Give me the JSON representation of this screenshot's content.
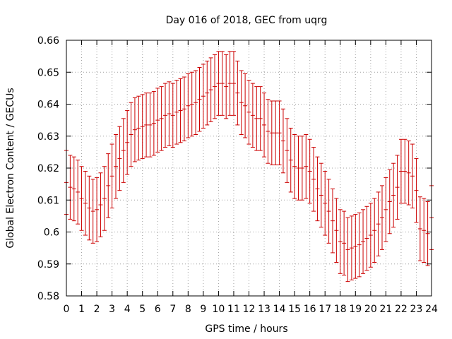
{
  "chart_data": {
    "type": "errorbar",
    "title": "Day 016 of 2018, GEC from uqrg",
    "xlabel": "GPS time / hours",
    "ylabel": "Global Electron Content / GECUs",
    "xlim": [
      0,
      24
    ],
    "ylim": [
      0.58,
      0.66
    ],
    "x_ticks": [
      "0",
      "1",
      "2",
      "3",
      "4",
      "5",
      "6",
      "7",
      "8",
      "9",
      "10",
      "11",
      "12",
      "13",
      "14",
      "15",
      "16",
      "17",
      "18",
      "19",
      "20",
      "21",
      "22",
      "23",
      "24"
    ],
    "y_ticks": [
      "0.58",
      "0.59",
      "0.6",
      "0.61",
      "0.62",
      "0.63",
      "0.64",
      "0.65",
      "0.66"
    ],
    "grid": true,
    "error_half_width": 0.01,
    "series": [
      {
        "name": "GEC",
        "color": "#cc0000",
        "x": [
          0.0,
          0.25,
          0.5,
          0.75,
          1.0,
          1.25,
          1.5,
          1.75,
          2.0,
          2.25,
          2.5,
          2.75,
          3.0,
          3.25,
          3.5,
          3.75,
          4.0,
          4.25,
          4.5,
          4.75,
          5.0,
          5.25,
          5.5,
          5.75,
          6.0,
          6.25,
          6.5,
          6.75,
          7.0,
          7.25,
          7.5,
          7.75,
          8.0,
          8.25,
          8.5,
          8.75,
          9.0,
          9.25,
          9.5,
          9.75,
          10.0,
          10.25,
          10.5,
          10.75,
          11.0,
          11.25,
          11.5,
          11.75,
          12.0,
          12.25,
          12.5,
          12.75,
          13.0,
          13.25,
          13.5,
          13.75,
          14.0,
          14.25,
          14.5,
          14.75,
          15.0,
          15.25,
          15.5,
          15.75,
          16.0,
          16.25,
          16.5,
          16.75,
          17.0,
          17.25,
          17.5,
          17.75,
          18.0,
          18.25,
          18.5,
          18.75,
          19.0,
          19.25,
          19.5,
          19.75,
          20.0,
          20.25,
          20.5,
          20.75,
          21.0,
          21.25,
          21.5,
          21.75,
          22.0,
          22.25,
          22.5,
          22.75,
          23.0,
          23.25,
          23.5,
          23.75,
          24.0
        ],
        "values": [
          0.6155,
          0.614,
          0.6135,
          0.6125,
          0.6105,
          0.609,
          0.6075,
          0.6065,
          0.607,
          0.6085,
          0.6105,
          0.6145,
          0.6175,
          0.6205,
          0.623,
          0.6255,
          0.628,
          0.6305,
          0.632,
          0.6325,
          0.633,
          0.6335,
          0.6335,
          0.634,
          0.635,
          0.6355,
          0.6365,
          0.637,
          0.6365,
          0.6375,
          0.638,
          0.6385,
          0.6395,
          0.64,
          0.6405,
          0.6415,
          0.6425,
          0.6435,
          0.6445,
          0.6455,
          0.6465,
          0.6465,
          0.6455,
          0.6465,
          0.6465,
          0.6435,
          0.6405,
          0.6395,
          0.6375,
          0.6365,
          0.6355,
          0.6355,
          0.6335,
          0.6315,
          0.631,
          0.631,
          0.631,
          0.6285,
          0.6255,
          0.6225,
          0.6205,
          0.62,
          0.62,
          0.6205,
          0.619,
          0.6165,
          0.6135,
          0.6115,
          0.609,
          0.6065,
          0.6035,
          0.6005,
          0.597,
          0.5965,
          0.5945,
          0.595,
          0.5955,
          0.596,
          0.597,
          0.598,
          0.599,
          0.6005,
          0.6025,
          0.6045,
          0.607,
          0.6095,
          0.6115,
          0.614,
          0.619,
          0.619,
          0.6185,
          0.6175,
          0.613,
          0.601,
          0.6005,
          0.5995,
          0.6045
        ]
      }
    ]
  }
}
